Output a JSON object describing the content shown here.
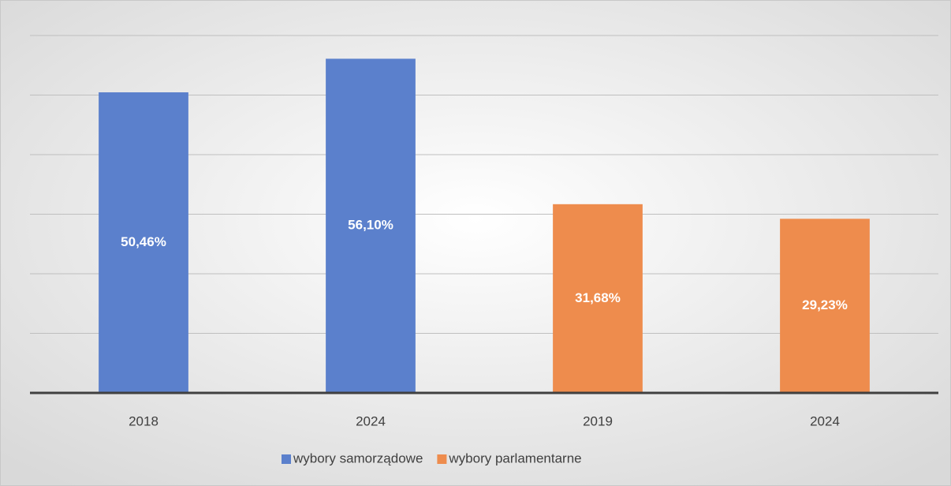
{
  "chart_data": {
    "type": "bar",
    "categories": [
      "2018",
      "2024",
      "2019",
      "2024"
    ],
    "series": [
      {
        "name": "wybory samorządowe",
        "color": "#5b80cc",
        "values": [
          50.46,
          56.1,
          null,
          null
        ],
        "value_labels": [
          "50,46%",
          "56,10%",
          null,
          null
        ]
      },
      {
        "name": "wybory parlamentarne",
        "color": "#ee8c4d",
        "values": [
          null,
          null,
          31.68,
          29.23
        ],
        "value_labels": [
          null,
          null,
          "31,68%",
          "29,23%"
        ]
      }
    ],
    "ylim": [
      0,
      60
    ],
    "yticks": [
      0,
      10,
      20,
      30,
      40,
      50,
      60
    ],
    "grid": true,
    "legend": "bottom"
  }
}
